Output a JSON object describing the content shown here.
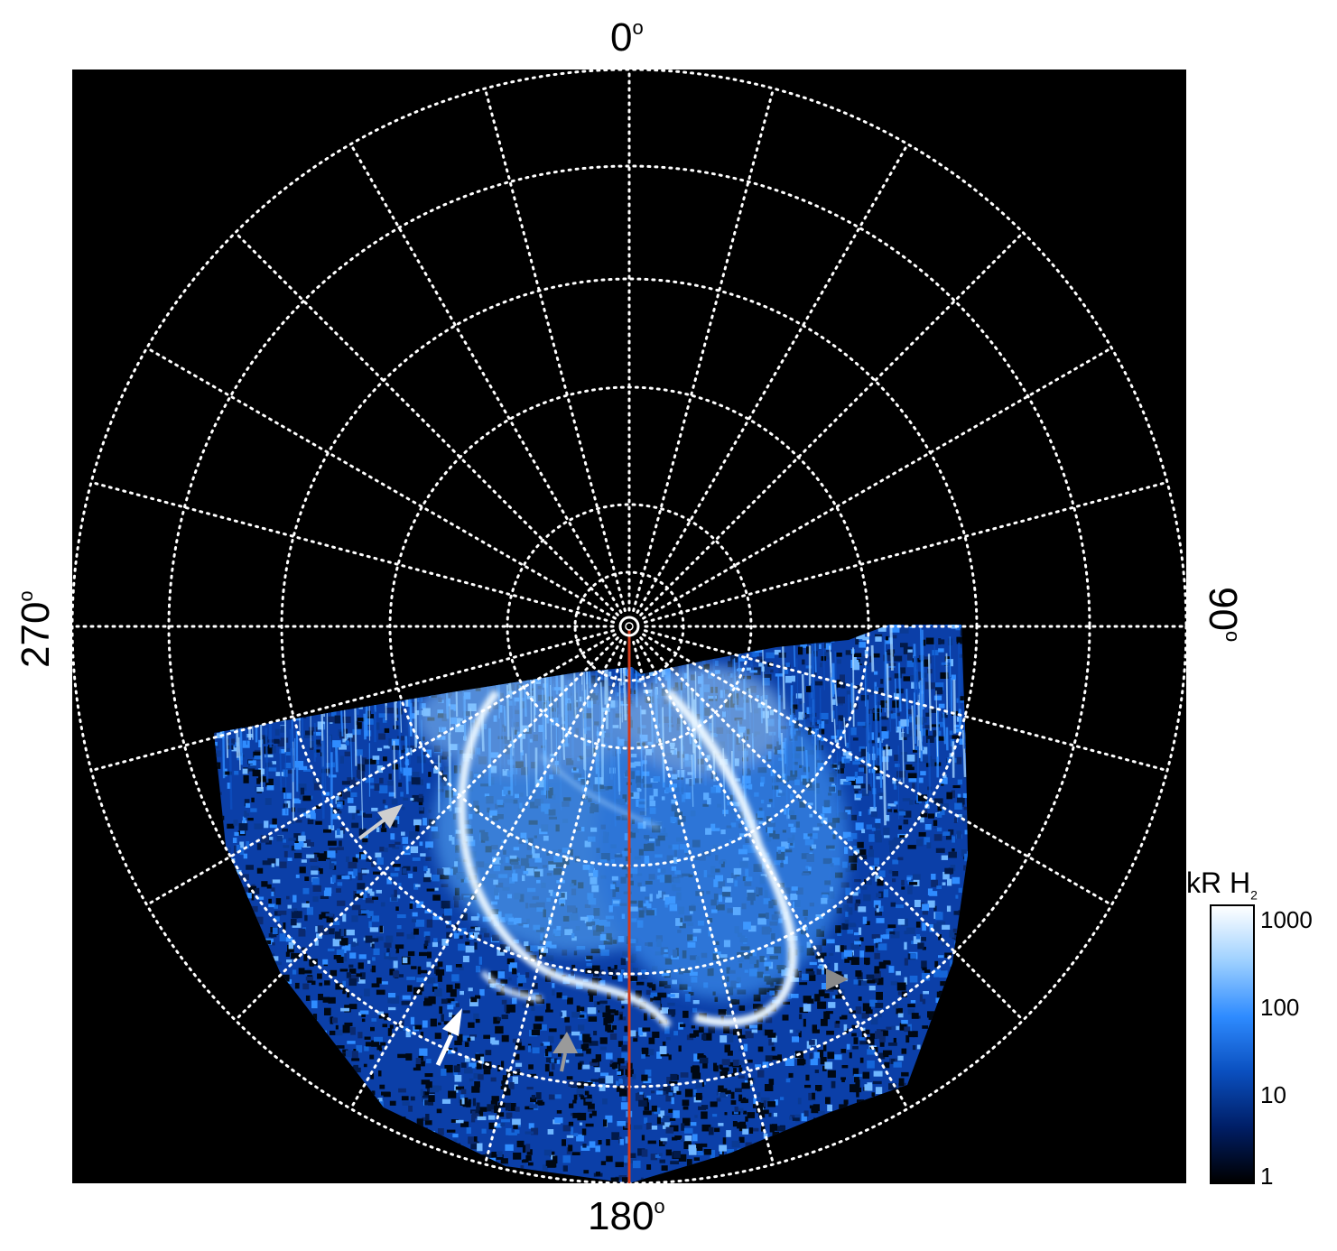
{
  "axis_labels": {
    "top": "0",
    "bottom": "180",
    "left": "270",
    "right": "90",
    "degree_symbol": "o"
  },
  "colorbar": {
    "title": "kR H",
    "title_subscript": "2",
    "ticks": [
      "1000",
      "100",
      "10",
      "1"
    ],
    "colors": [
      "#000000",
      "#001e66",
      "#0a4fbf",
      "#2e8bff",
      "#9dd0ff",
      "#ffffff"
    ]
  },
  "grid": {
    "color": "#ffffff",
    "style": "dotted"
  },
  "meridian_line": {
    "color": "#d33a1b"
  },
  "arrows": {
    "white": "#ffffff",
    "gray": "#c8c8c8",
    "dark_gray": "#8a8a8a"
  },
  "background": "#000000"
}
